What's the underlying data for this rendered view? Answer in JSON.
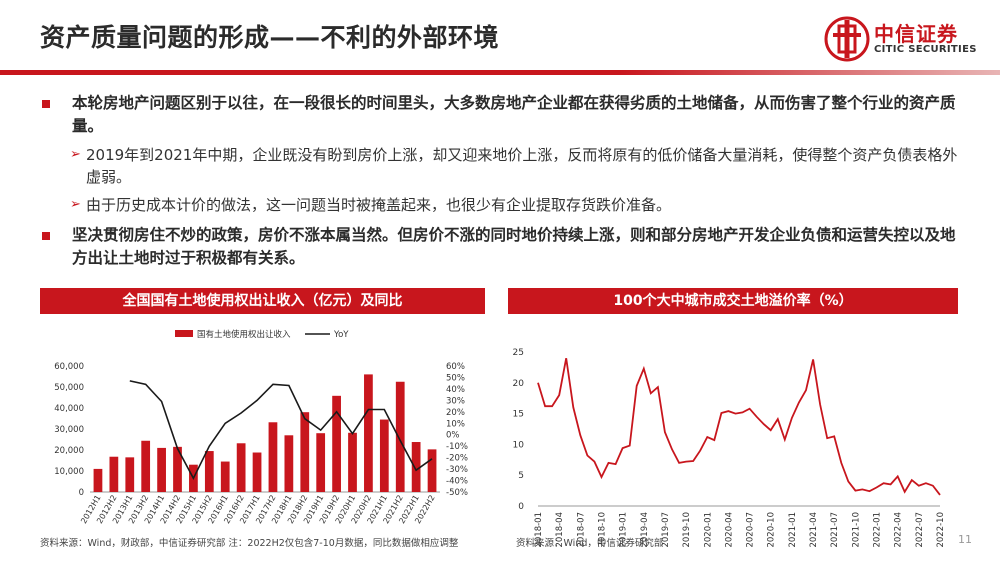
{
  "header": {
    "title": "资产质量问题的形成——不利的外部环境",
    "logo_cn": "中信证券",
    "logo_en": "CITIC SECURITIES",
    "logo_icon": "citic-logo-icon"
  },
  "bullets": {
    "b1": "本轮房地产问题区别于以往，在一段很长的时间里头，大多数房地产企业都在获得劣质的土地储备，从而伤害了整个行业的资产质量。",
    "b1_sub1": "2019年到2021年中期，企业既没有盼到房价上涨，却又迎来地价上涨，反而将原有的低价储备大量消耗，使得整个资产负债表格外虚弱。",
    "b1_sub2": "由于历史成本计价的做法，这一问题当时被掩盖起来，也很少有企业提取存货跌价准备。",
    "b2": "坚决贯彻房住不炒的政策，房价不涨本属当然。但房价不涨的同时地价持续上涨，则和部分房地产开发企业负债和运营失控以及地方出让土地时过于积极都有关系。"
  },
  "chart_data": [
    {
      "type": "bar",
      "title": "全国国有土地使用权出让收入（亿元）及同比",
      "categories": [
        "2012H1",
        "2012H2",
        "2013H1",
        "2013H2",
        "2014H1",
        "2014H2",
        "2015H1",
        "2015H2",
        "2016H1",
        "2016H2",
        "2017H1",
        "2017H2",
        "2018H1",
        "2018H2",
        "2019H1",
        "2019H2",
        "2020H1",
        "2020H2",
        "2021H1",
        "2021H2",
        "2022H1",
        "2022H2"
      ],
      "series": [
        {
          "name": "国有土地使用权出让收入",
          "type": "bar",
          "axis": "left",
          "color": "#c8161d",
          "values": [
            11000,
            16800,
            16500,
            24400,
            21000,
            21500,
            13000,
            19500,
            14500,
            23200,
            18800,
            33200,
            27000,
            38000,
            28000,
            45800,
            28200,
            56000,
            34500,
            52500,
            23800,
            20300
          ]
        },
        {
          "name": "YoY",
          "type": "line",
          "axis": "right",
          "color": "#1a1a1a",
          "values": [
            null,
            null,
            47,
            44,
            29,
            -12,
            -38,
            -10,
            10,
            19,
            30,
            44,
            43,
            14,
            4,
            20,
            1,
            22,
            22,
            -5,
            -31,
            -21
          ]
        }
      ],
      "ylim_left": [
        0,
        60000
      ],
      "yticks_left": [
        "0",
        "10,000",
        "20,000",
        "30,000",
        "40,000",
        "50,000",
        "60,000"
      ],
      "ylim_right": [
        -50,
        60
      ],
      "yticks_right": [
        "-50%",
        "-40%",
        "-30%",
        "-20%",
        "-10%",
        "0%",
        "10%",
        "20%",
        "30%",
        "40%",
        "50%",
        "60%"
      ],
      "legend": "top"
    },
    {
      "type": "line",
      "title": "100个大中城市成交土地溢价率（%）",
      "x_labels": [
        "2018-01",
        "2018-04",
        "2018-07",
        "2018-10",
        "2019-01",
        "2019-04",
        "2019-07",
        "2019-10",
        "2020-01",
        "2020-04",
        "2020-07",
        "2020-10",
        "2021-01",
        "2021-04",
        "2021-07",
        "2021-10",
        "2022-01",
        "2022-04",
        "2022-07",
        "2022-10"
      ],
      "series": [
        {
          "name": "",
          "color": "#c8161d",
          "values": [
            20,
            16.2,
            16.2,
            18,
            24,
            16,
            11.5,
            8.2,
            7.2,
            4.7,
            7,
            6.8,
            9.4,
            9.8,
            19.5,
            22.3,
            18.3,
            19.3,
            12,
            9.2,
            7,
            7.2,
            7.3,
            9,
            11.2,
            10.7,
            15.1,
            15.4,
            15,
            15.2,
            15.8,
            14.5,
            13.3,
            12.3,
            14.1,
            10.8,
            14.3,
            16.8,
            18.8,
            23.8,
            16.5,
            11,
            11.3,
            7,
            4,
            2.5,
            2.7,
            2.4,
            3,
            3.7,
            3.5,
            4.8,
            2.3,
            4.2,
            3.3,
            3.7,
            3.3,
            1.8
          ]
        }
      ],
      "ylim": [
        0,
        25
      ],
      "yticks": [
        "0",
        "5",
        "10",
        "15",
        "20",
        "25"
      ]
    }
  ],
  "footer": {
    "source_left": "资料来源：Wind，财政部，中信证券研究部  注：2022H2仅包含7-10月数据，同比数据做相应调整",
    "source_right": "资料来源：Wind，中信证券研究部",
    "page": "11"
  }
}
